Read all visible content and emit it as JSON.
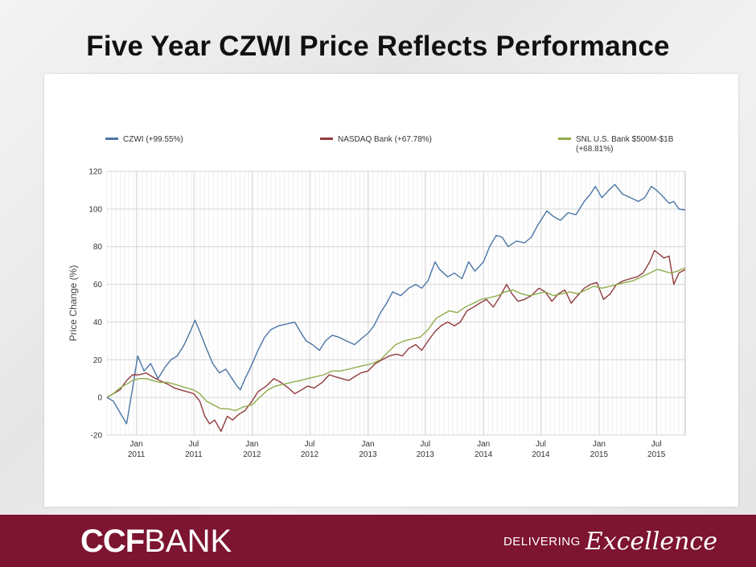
{
  "slide": {
    "title": "Five Year CZWI Price Reflects Performance"
  },
  "footer": {
    "logo_bold": "CCF",
    "logo_light": "BANK",
    "tagline_1": "DELIVERING",
    "tagline_2": "Excellence"
  },
  "colors": {
    "czwi": "#4a75a6",
    "nasdaq": "#923b3e",
    "snl": "#8fad4a",
    "band": "#7d1430"
  },
  "chart_data": {
    "type": "line",
    "title": "",
    "xlabel": "",
    "ylabel": "Price Change (%)",
    "ylim": [
      -20,
      120
    ],
    "yticks": [
      -20,
      0,
      20,
      40,
      60,
      80,
      100,
      120
    ],
    "xlim": [
      "2010-09-30",
      "2015-09-30"
    ],
    "x_ticks": [
      {
        "date": "2011-01-01",
        "label1": "Jan",
        "label2": "2011"
      },
      {
        "date": "2011-07-01",
        "label1": "Jul",
        "label2": "2011"
      },
      {
        "date": "2012-01-01",
        "label1": "Jan",
        "label2": "2012"
      },
      {
        "date": "2012-07-01",
        "label1": "Jul",
        "label2": "2012"
      },
      {
        "date": "2013-01-01",
        "label1": "Jan",
        "label2": "2013"
      },
      {
        "date": "2013-07-01",
        "label1": "Jul",
        "label2": "2013"
      },
      {
        "date": "2014-01-01",
        "label1": "Jan",
        "label2": "2014"
      },
      {
        "date": "2014-07-01",
        "label1": "Jul",
        "label2": "2014"
      },
      {
        "date": "2015-01-01",
        "label1": "Jan",
        "label2": "2015"
      },
      {
        "date": "2015-07-01",
        "label1": "Jul",
        "label2": "2015"
      }
    ],
    "grid": true,
    "legend": "top",
    "series": [
      {
        "name": "CZWI (+99.55%)",
        "color": "#4a75a6",
        "points": [
          [
            "2010-09-30",
            0
          ],
          [
            "2010-10-20",
            -2
          ],
          [
            "2010-11-10",
            -8
          ],
          [
            "2010-12-01",
            -14
          ],
          [
            "2010-12-20",
            5
          ],
          [
            "2011-01-05",
            22
          ],
          [
            "2011-01-25",
            14
          ],
          [
            "2011-02-15",
            18
          ],
          [
            "2011-03-10",
            10
          ],
          [
            "2011-04-01",
            16
          ],
          [
            "2011-04-20",
            20
          ],
          [
            "2011-05-10",
            22
          ],
          [
            "2011-06-01",
            28
          ],
          [
            "2011-06-20",
            35
          ],
          [
            "2011-07-05",
            41
          ],
          [
            "2011-07-20",
            35
          ],
          [
            "2011-08-10",
            26
          ],
          [
            "2011-08-30",
            18
          ],
          [
            "2011-09-20",
            13
          ],
          [
            "2011-10-10",
            15
          ],
          [
            "2011-10-30",
            10
          ],
          [
            "2011-11-15",
            6
          ],
          [
            "2011-11-25",
            4
          ],
          [
            "2011-12-10",
            10
          ],
          [
            "2011-12-25",
            15
          ],
          [
            "2012-01-20",
            25
          ],
          [
            "2012-02-10",
            32
          ],
          [
            "2012-03-01",
            36
          ],
          [
            "2012-03-25",
            38
          ],
          [
            "2012-04-20",
            39
          ],
          [
            "2012-05-15",
            40
          ],
          [
            "2012-06-01",
            35
          ],
          [
            "2012-06-20",
            30
          ],
          [
            "2012-07-10",
            28
          ],
          [
            "2012-08-01",
            25
          ],
          [
            "2012-08-20",
            30
          ],
          [
            "2012-09-10",
            33
          ],
          [
            "2012-10-01",
            32
          ],
          [
            "2012-10-25",
            30
          ],
          [
            "2012-11-20",
            28
          ],
          [
            "2012-12-10",
            31
          ],
          [
            "2013-01-01",
            34
          ],
          [
            "2013-01-20",
            38
          ],
          [
            "2013-02-10",
            45
          ],
          [
            "2013-03-01",
            50
          ],
          [
            "2013-03-20",
            56
          ],
          [
            "2013-04-15",
            54
          ],
          [
            "2013-05-10",
            58
          ],
          [
            "2013-06-01",
            60
          ],
          [
            "2013-06-20",
            58
          ],
          [
            "2013-07-10",
            62
          ],
          [
            "2013-08-01",
            72
          ],
          [
            "2013-08-15",
            68
          ],
          [
            "2013-09-10",
            64
          ],
          [
            "2013-10-01",
            66
          ],
          [
            "2013-10-25",
            63
          ],
          [
            "2013-11-15",
            72
          ],
          [
            "2013-12-05",
            67
          ],
          [
            "2014-01-01",
            72
          ],
          [
            "2014-01-20",
            80
          ],
          [
            "2014-02-10",
            86
          ],
          [
            "2014-03-01",
            85
          ],
          [
            "2014-03-20",
            80
          ],
          [
            "2014-04-15",
            83
          ],
          [
            "2014-05-10",
            82
          ],
          [
            "2014-06-01",
            85
          ],
          [
            "2014-06-20",
            91
          ],
          [
            "2014-07-05",
            95
          ],
          [
            "2014-07-20",
            99
          ],
          [
            "2014-08-10",
            96
          ],
          [
            "2014-09-01",
            94
          ],
          [
            "2014-09-25",
            98
          ],
          [
            "2014-10-20",
            97
          ],
          [
            "2014-11-15",
            104
          ],
          [
            "2014-12-05",
            108
          ],
          [
            "2014-12-20",
            112
          ],
          [
            "2015-01-10",
            106
          ],
          [
            "2015-02-01",
            110
          ],
          [
            "2015-02-20",
            113
          ],
          [
            "2015-03-15",
            108
          ],
          [
            "2015-04-10",
            106
          ],
          [
            "2015-05-05",
            104
          ],
          [
            "2015-05-25",
            106
          ],
          [
            "2015-06-15",
            112
          ],
          [
            "2015-07-01",
            110
          ],
          [
            "2015-07-20",
            107
          ],
          [
            "2015-08-10",
            103
          ],
          [
            "2015-08-25",
            104
          ],
          [
            "2015-09-10",
            100
          ],
          [
            "2015-09-30",
            99.5
          ]
        ]
      },
      {
        "name": "NASDAQ Bank (+67.78%)",
        "color": "#923b3e",
        "points": [
          [
            "2010-09-30",
            0
          ],
          [
            "2010-10-20",
            2
          ],
          [
            "2010-11-10",
            4
          ],
          [
            "2010-12-01",
            9
          ],
          [
            "2010-12-20",
            12
          ],
          [
            "2011-01-10",
            12
          ],
          [
            "2011-02-01",
            13
          ],
          [
            "2011-02-20",
            11
          ],
          [
            "2011-03-15",
            9
          ],
          [
            "2011-04-10",
            7
          ],
          [
            "2011-05-01",
            5
          ],
          [
            "2011-05-20",
            4
          ],
          [
            "2011-06-10",
            3
          ],
          [
            "2011-07-01",
            2
          ],
          [
            "2011-07-20",
            -2
          ],
          [
            "2011-08-05",
            -10
          ],
          [
            "2011-08-20",
            -14
          ],
          [
            "2011-09-05",
            -12
          ],
          [
            "2011-09-25",
            -18
          ],
          [
            "2011-10-15",
            -10
          ],
          [
            "2011-11-01",
            -12
          ],
          [
            "2011-11-20",
            -9
          ],
          [
            "2011-12-10",
            -7
          ],
          [
            "2012-01-01",
            -2
          ],
          [
            "2012-01-20",
            3
          ],
          [
            "2012-02-15",
            6
          ],
          [
            "2012-03-10",
            10
          ],
          [
            "2012-04-01",
            8
          ],
          [
            "2012-04-25",
            5
          ],
          [
            "2012-05-15",
            2
          ],
          [
            "2012-06-05",
            4
          ],
          [
            "2012-06-25",
            6
          ],
          [
            "2012-07-15",
            5
          ],
          [
            "2012-08-10",
            8
          ],
          [
            "2012-09-01",
            12
          ],
          [
            "2012-09-20",
            11
          ],
          [
            "2012-10-10",
            10
          ],
          [
            "2012-11-01",
            9
          ],
          [
            "2012-11-20",
            11
          ],
          [
            "2012-12-10",
            13
          ],
          [
            "2013-01-01",
            14
          ],
          [
            "2013-01-25",
            18
          ],
          [
            "2013-02-15",
            20
          ],
          [
            "2013-03-10",
            22
          ],
          [
            "2013-04-01",
            23
          ],
          [
            "2013-04-20",
            22
          ],
          [
            "2013-05-10",
            26
          ],
          [
            "2013-06-01",
            28
          ],
          [
            "2013-06-20",
            25
          ],
          [
            "2013-07-10",
            30
          ],
          [
            "2013-08-01",
            35
          ],
          [
            "2013-08-20",
            38
          ],
          [
            "2013-09-10",
            40
          ],
          [
            "2013-10-01",
            38
          ],
          [
            "2013-10-20",
            40
          ],
          [
            "2013-11-10",
            46
          ],
          [
            "2013-12-01",
            48
          ],
          [
            "2013-12-20",
            50
          ],
          [
            "2014-01-10",
            52
          ],
          [
            "2014-02-01",
            48
          ],
          [
            "2014-02-20",
            53
          ],
          [
            "2014-03-15",
            60
          ],
          [
            "2014-04-01",
            55
          ],
          [
            "2014-04-20",
            51
          ],
          [
            "2014-05-10",
            52
          ],
          [
            "2014-06-01",
            54
          ],
          [
            "2014-06-25",
            58
          ],
          [
            "2014-07-15",
            56
          ],
          [
            "2014-08-05",
            51
          ],
          [
            "2014-08-25",
            55
          ],
          [
            "2014-09-15",
            57
          ],
          [
            "2014-10-05",
            50
          ],
          [
            "2014-10-25",
            54
          ],
          [
            "2014-11-15",
            58
          ],
          [
            "2014-12-05",
            60
          ],
          [
            "2014-12-25",
            61
          ],
          [
            "2015-01-15",
            52
          ],
          [
            "2015-02-05",
            55
          ],
          [
            "2015-02-25",
            60
          ],
          [
            "2015-03-20",
            62
          ],
          [
            "2015-04-10",
            63
          ],
          [
            "2015-05-01",
            64
          ],
          [
            "2015-05-20",
            66
          ],
          [
            "2015-06-10",
            72
          ],
          [
            "2015-06-25",
            78
          ],
          [
            "2015-07-10",
            76
          ],
          [
            "2015-07-25",
            74
          ],
          [
            "2015-08-10",
            75
          ],
          [
            "2015-08-25",
            60
          ],
          [
            "2015-09-10",
            66
          ],
          [
            "2015-09-30",
            67.8
          ]
        ]
      },
      {
        "name": "SNL U.S. Bank $500M-$1B (+68.81%)",
        "legend_line1": "SNL U.S. Bank $500M-$1B",
        "legend_line2": "(+68.81%)",
        "color": "#8fad4a",
        "points": [
          [
            "2010-09-30",
            0
          ],
          [
            "2010-10-20",
            2
          ],
          [
            "2010-11-10",
            5
          ],
          [
            "2010-12-01",
            7
          ],
          [
            "2010-12-20",
            9
          ],
          [
            "2011-01-10",
            10
          ],
          [
            "2011-02-01",
            10
          ],
          [
            "2011-02-20",
            9
          ],
          [
            "2011-03-15",
            8
          ],
          [
            "2011-04-10",
            8
          ],
          [
            "2011-05-01",
            7
          ],
          [
            "2011-05-20",
            6
          ],
          [
            "2011-06-10",
            5
          ],
          [
            "2011-07-01",
            4
          ],
          [
            "2011-07-20",
            2
          ],
          [
            "2011-08-10",
            -2
          ],
          [
            "2011-09-01",
            -4
          ],
          [
            "2011-09-25",
            -6
          ],
          [
            "2011-10-15",
            -6
          ],
          [
            "2011-11-10",
            -7
          ],
          [
            "2011-12-05",
            -5
          ],
          [
            "2012-01-01",
            -4
          ],
          [
            "2012-01-25",
            0
          ],
          [
            "2012-02-20",
            4
          ],
          [
            "2012-03-15",
            6
          ],
          [
            "2012-04-10",
            7
          ],
          [
            "2012-05-05",
            8
          ],
          [
            "2012-06-01",
            9
          ],
          [
            "2012-06-25",
            10
          ],
          [
            "2012-07-20",
            11
          ],
          [
            "2012-08-15",
            12
          ],
          [
            "2012-09-10",
            14
          ],
          [
            "2012-10-05",
            14
          ],
          [
            "2012-11-01",
            15
          ],
          [
            "2012-11-25",
            16
          ],
          [
            "2012-12-20",
            17
          ],
          [
            "2013-01-15",
            18
          ],
          [
            "2013-02-10",
            20
          ],
          [
            "2013-03-05",
            24
          ],
          [
            "2013-03-30",
            28
          ],
          [
            "2013-04-25",
            30
          ],
          [
            "2013-05-20",
            31
          ],
          [
            "2013-06-15",
            32
          ],
          [
            "2013-07-10",
            36
          ],
          [
            "2013-08-05",
            42
          ],
          [
            "2013-08-25",
            44
          ],
          [
            "2013-09-15",
            46
          ],
          [
            "2013-10-10",
            45
          ],
          [
            "2013-11-05",
            48
          ],
          [
            "2013-12-01",
            50
          ],
          [
            "2013-12-25",
            52
          ],
          [
            "2014-01-20",
            53
          ],
          [
            "2014-02-15",
            54
          ],
          [
            "2014-03-10",
            56
          ],
          [
            "2014-04-05",
            57
          ],
          [
            "2014-05-01",
            55
          ],
          [
            "2014-05-25",
            54
          ],
          [
            "2014-06-20",
            55
          ],
          [
            "2014-07-15",
            56
          ],
          [
            "2014-08-10",
            54
          ],
          [
            "2014-09-05",
            55
          ],
          [
            "2014-10-01",
            56
          ],
          [
            "2014-10-25",
            55
          ],
          [
            "2014-11-20",
            57
          ],
          [
            "2014-12-15",
            59
          ],
          [
            "2015-01-10",
            58
          ],
          [
            "2015-02-05",
            59
          ],
          [
            "2015-03-01",
            60
          ],
          [
            "2015-03-25",
            61
          ],
          [
            "2015-04-20",
            62
          ],
          [
            "2015-05-15",
            64
          ],
          [
            "2015-06-10",
            66
          ],
          [
            "2015-07-05",
            68
          ],
          [
            "2015-07-25",
            67
          ],
          [
            "2015-08-15",
            66
          ],
          [
            "2015-09-05",
            67
          ],
          [
            "2015-09-30",
            68.8
          ]
        ]
      }
    ]
  }
}
